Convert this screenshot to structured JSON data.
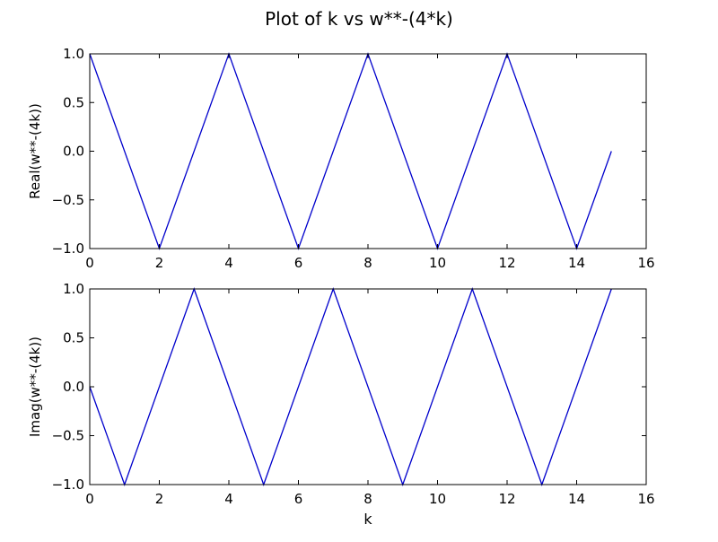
{
  "figure": {
    "suptitle": "Plot of k vs w**-(4*k)"
  },
  "chart_data": [
    {
      "type": "line",
      "title": "",
      "xlabel": "",
      "ylabel": "Real(w**-(4k))",
      "xlim": [
        0,
        16
      ],
      "ylim": [
        -1.0,
        1.0
      ],
      "xticks": [
        "0",
        "2",
        "4",
        "6",
        "8",
        "10",
        "12",
        "14",
        "16"
      ],
      "yticks": [
        "1.0",
        "0.5",
        "0.0",
        "−0.5",
        "−1.0"
      ],
      "grid": false,
      "legend": "none",
      "series": [
        {
          "color": "#0000cc",
          "x": [
            0,
            2,
            4,
            6,
            8,
            10,
            12,
            14,
            15
          ],
          "y": [
            1,
            -1,
            1,
            -1,
            1,
            -1,
            1,
            -1,
            0
          ]
        }
      ]
    },
    {
      "type": "line",
      "title": "",
      "xlabel": "k",
      "ylabel": "Imag(w**-(4k))",
      "xlim": [
        0,
        16
      ],
      "ylim": [
        -1.0,
        1.0
      ],
      "xticks": [
        "0",
        "2",
        "4",
        "6",
        "8",
        "10",
        "12",
        "14",
        "16"
      ],
      "yticks": [
        "1.0",
        "0.5",
        "0.0",
        "−0.5",
        "−1.0"
      ],
      "grid": false,
      "legend": "none",
      "series": [
        {
          "color": "#0000cc",
          "x": [
            0,
            1,
            3,
            5,
            7,
            9,
            11,
            13,
            15
          ],
          "y": [
            0,
            -1,
            1,
            -1,
            1,
            -1,
            1,
            -1,
            1
          ]
        }
      ]
    }
  ]
}
